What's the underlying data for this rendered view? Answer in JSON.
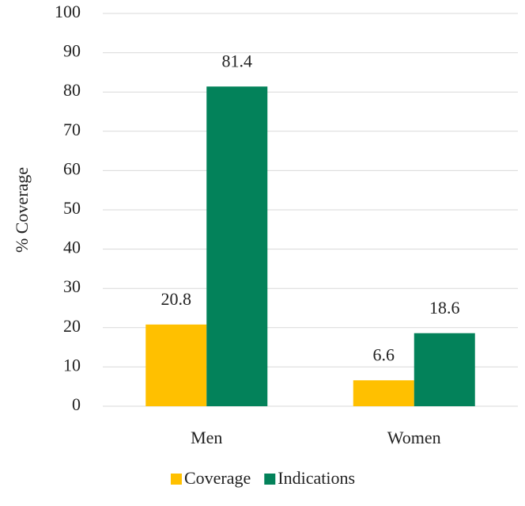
{
  "chart_data": {
    "type": "bar",
    "y_label": "% Coverage",
    "categories": [
      "Men",
      "Women"
    ],
    "series": [
      {
        "name": "Coverage",
        "color": "#ffc000",
        "values": [
          20.8,
          6.6
        ]
      },
      {
        "name": "Indications",
        "color": "#03825a",
        "values": [
          81.4,
          18.6
        ]
      }
    ],
    "ylim": [
      0,
      100
    ],
    "yticks": [
      0,
      10,
      20,
      30,
      40,
      50,
      60,
      70,
      80,
      90,
      100
    ],
    "grid": true,
    "legend": "bottom"
  }
}
